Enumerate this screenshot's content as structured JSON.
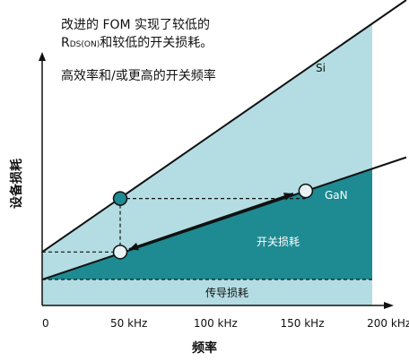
{
  "annotations": {
    "line1": "改进的 FOM 实现了较低的",
    "line2_prefix": "R",
    "line2_sub": "DS(ON)",
    "line2_suffix": "和较低的开关损耗。",
    "line3": "高效率和/或更高的开关频率"
  },
  "colors": {
    "si_region": "#b3dde2",
    "gan_region": "#1e8a92",
    "conduction_band": "#b3dde2",
    "axis": "#111111",
    "line": "#111111",
    "dot_filled": "#1e8a92",
    "dot_open": "#e8f3f5"
  },
  "chart_data": {
    "type": "line",
    "title": "",
    "xlabel": "频率",
    "ylabel": "设备损耗",
    "x_ticks": [
      "0",
      "50 kHz",
      "100 kHz",
      "150 kHz",
      "200 kHz"
    ],
    "x_tick_values": [
      0,
      50,
      100,
      150,
      200
    ],
    "xlim": [
      0,
      225
    ],
    "ylim": [
      0,
      10
    ],
    "series": [
      {
        "name": "Si",
        "x": [
          0,
          210
        ],
        "y": [
          1.75,
          10.0
        ]
      },
      {
        "name": "GaN",
        "x": [
          0,
          210
        ],
        "y": [
          0.85,
          4.85
        ]
      }
    ],
    "conduction_loss_level": 0.85,
    "region_labels": {
      "switching": "开关损耗",
      "conduction": "传导损耗"
    },
    "comparison": {
      "si_point": {
        "x": 45,
        "y": 3.5
      },
      "gan_point_same_freq": {
        "x": 45,
        "y": 1.75
      },
      "gan_point_higher_freq": {
        "x": 152,
        "y": 3.75
      }
    }
  }
}
